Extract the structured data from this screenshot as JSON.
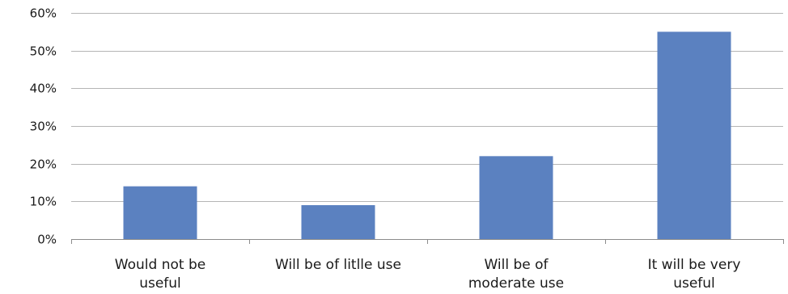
{
  "chart_data": {
    "type": "bar",
    "title": "",
    "xlabel": "",
    "ylabel": "",
    "categories": [
      [
        "Would not be",
        "useful"
      ],
      [
        "Will be of litlle use"
      ],
      [
        "Will be of",
        "moderate use"
      ],
      [
        "It will be very",
        "useful"
      ]
    ],
    "values": [
      14,
      9,
      22,
      55
    ],
    "ylim": [
      0,
      60
    ],
    "yticks": [
      0,
      10,
      20,
      30,
      40,
      50,
      60
    ],
    "ytick_labels": [
      "0%",
      "10%",
      "20%",
      "30%",
      "40%",
      "50%",
      "60%"
    ],
    "grid": true,
    "legend": "none",
    "bar_color": "#5b81c0",
    "grid_color": "#b5b5b5",
    "axis_color": "#8c8c8c"
  }
}
